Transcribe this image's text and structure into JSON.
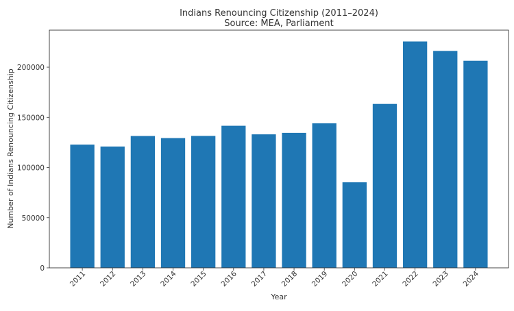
{
  "chart_data": {
    "type": "bar",
    "title": "Indians Renouncing Citizenship (2011–2024)",
    "subtitle": "Source: MEA, Parliament",
    "xlabel": "Year",
    "ylabel": "Number of Indians Renouncing Citizenship",
    "categories": [
      "2011",
      "2012",
      "2013",
      "2014",
      "2015",
      "2016",
      "2017",
      "2018",
      "2019",
      "2020",
      "2021",
      "2022",
      "2023",
      "2024"
    ],
    "values": [
      122819,
      120923,
      131405,
      129328,
      131489,
      141603,
      133049,
      134561,
      144017,
      85256,
      163370,
      225620,
      216219,
      206378
    ],
    "ylim": [
      0,
      236900
    ],
    "yticks": [
      0,
      50000,
      100000,
      150000,
      200000
    ],
    "ytick_labels": [
      "0",
      "50000",
      "100000",
      "150000",
      "200000"
    ],
    "grid": false,
    "bar_color": "#1f77b4",
    "xtick_rotation": 45
  }
}
